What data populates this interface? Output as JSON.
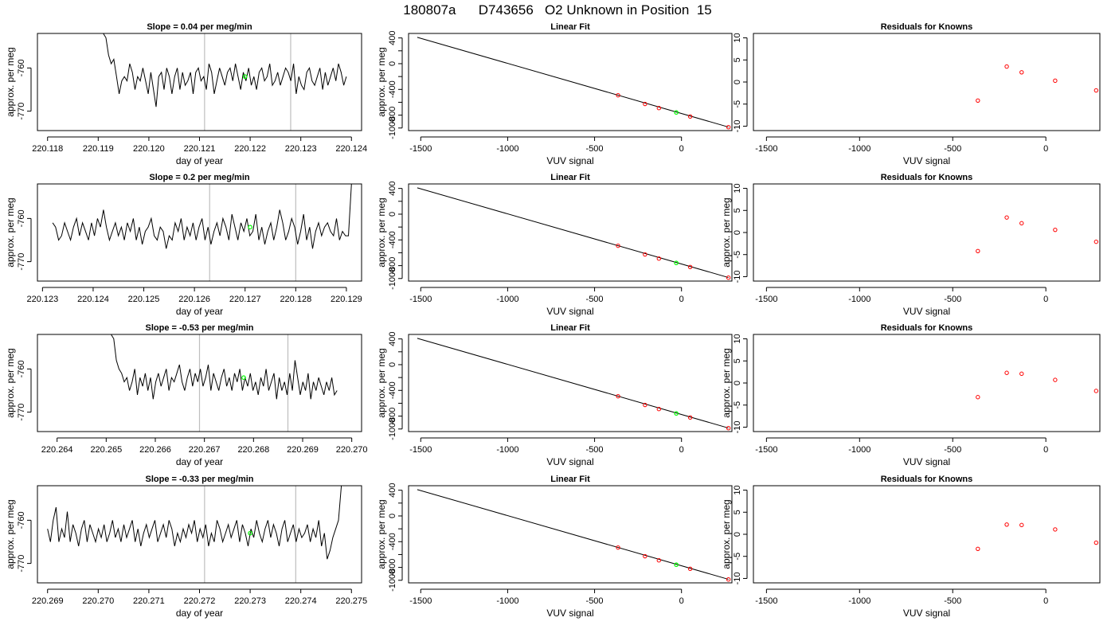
{
  "title": "180807a      D743656   O2 Unknown in Position  15",
  "colors": {
    "line": "#000000",
    "grid": "#bebebe",
    "known_point": "#ff0000",
    "unknown_point": "#00ff00"
  },
  "chart_data": [
    {
      "panel": "row1-timeseries",
      "type": "line",
      "title": "Slope =  0.04  per meg/min",
      "xlabel": "day of year",
      "ylabel": "approx. per meg",
      "xlim": [
        220.1178,
        220.1242
      ],
      "ylim": [
        -774.5,
        -752
      ],
      "xticks": [
        220.118,
        220.119,
        220.12,
        220.121,
        220.122,
        220.123,
        220.124
      ],
      "xtick_labels": [
        "220.118",
        "220.119",
        "220.120",
        "220.121",
        "220.122",
        "220.123",
        "220.124"
      ],
      "yticks": [
        -760,
        -770
      ],
      "ytick_labels": [
        "-760",
        "-770"
      ],
      "vlines": [
        220.1211,
        220.1228
      ],
      "x_start": 220.1191,
      "x_end": 220.1239,
      "y": [
        -752,
        -753,
        -757,
        -759,
        -758,
        -762,
        -766,
        -763,
        -762,
        -763,
        -759,
        -761,
        -765,
        -762,
        -763,
        -760,
        -763,
        -766,
        -761,
        -765,
        -769,
        -762,
        -761,
        -765,
        -760,
        -762,
        -766,
        -762,
        -760,
        -765,
        -761,
        -764,
        -763,
        -761,
        -766,
        -761,
        -760,
        -763,
        -762,
        -765,
        -759,
        -761,
        -766,
        -763,
        -760,
        -762,
        -764,
        -761,
        -760,
        -763,
        -759,
        -762,
        -765,
        -761,
        -763,
        -760,
        -764,
        -762,
        -765,
        -761,
        -760,
        -763,
        -762,
        -759,
        -764,
        -763,
        -761,
        -764,
        -762,
        -760,
        -761,
        -763,
        -759,
        -766,
        -762,
        -764,
        -765,
        -761,
        -760,
        -763,
        -764,
        -762,
        -760,
        -765,
        -761,
        -764,
        -762,
        -760,
        -763,
        -759,
        -761,
        -764,
        -762
      ],
      "marker": {
        "x": 220.1219,
        "y": -762
      }
    },
    {
      "panel": "row1-fit",
      "type": "scatter",
      "title": "Linear Fit",
      "xlabel": "VUV signal",
      "ylabel": "approx. per meg",
      "xlim": [
        -1570,
        290
      ],
      "ylim": [
        -1040,
        470
      ],
      "xticks": [
        -1500,
        -1000,
        -500,
        0
      ],
      "xtick_labels": [
        "-1500",
        "-1000",
        "-500",
        "0"
      ],
      "yticks": [
        400,
        200,
        0,
        -200,
        -400,
        -600,
        -800,
        -1000
      ],
      "ytick_labels": [
        "400",
        "",
        "0",
        "",
        "-400",
        "",
        "-800",
        "-1000"
      ],
      "line": [
        [
          -1520,
          410
        ],
        [
          270,
          -985
        ]
      ],
      "known": [
        [
          -365,
          -491
        ],
        [
          -210,
          -626
        ],
        [
          -130,
          -690
        ],
        [
          50,
          -821
        ],
        [
          270,
          -987
        ]
      ],
      "unknown": [
        [
          -30,
          -758
        ]
      ]
    },
    {
      "panel": "row1-residuals",
      "type": "scatter",
      "title": "Residuals for Knowns",
      "xlabel": "VUV signal",
      "ylabel": "",
      "xlim": [
        -1570,
        290
      ],
      "ylim": [
        -11,
        11
      ],
      "xticks": [
        -1500,
        -1000,
        -500,
        0
      ],
      "xtick_labels": [
        "-1500",
        "-1000",
        "-500",
        "0"
      ],
      "yticks": [
        10,
        5,
        0,
        -5,
        -10
      ],
      "ytick_labels": [
        "10",
        "5",
        "0",
        "-5",
        "-10"
      ],
      "known": [
        [
          -365,
          -4.2
        ],
        [
          -210,
          3.5
        ],
        [
          -130,
          2.2
        ],
        [
          50,
          0.3
        ],
        [
          270,
          -1.9
        ]
      ]
    },
    {
      "panel": "row2-timeseries",
      "type": "line",
      "title": "Slope =  0.2  per meg/min",
      "xlabel": "day of year",
      "ylabel": "approx. per meg",
      "xlim": [
        220.1229,
        220.1293
      ],
      "ylim": [
        -774.5,
        -752
      ],
      "xticks": [
        220.123,
        220.124,
        220.125,
        220.126,
        220.127,
        220.128,
        220.129
      ],
      "xtick_labels": [
        "220.123",
        "220.124",
        "220.125",
        "220.126",
        "220.127",
        "220.128",
        "220.129"
      ],
      "yticks": [
        -760,
        -770
      ],
      "ytick_labels": [
        "-760",
        "-770"
      ],
      "vlines": [
        220.1263,
        220.128
      ],
      "x_start": 220.1232,
      "x_end": 220.1291,
      "y": [
        -761,
        -762,
        -765,
        -764,
        -761,
        -763,
        -765,
        -762,
        -760,
        -764,
        -761,
        -763,
        -765,
        -761,
        -764,
        -760,
        -762,
        -758,
        -762,
        -765,
        -763,
        -761,
        -764,
        -762,
        -765,
        -761,
        -763,
        -760,
        -765,
        -762,
        -766,
        -763,
        -762,
        -760,
        -764,
        -765,
        -762,
        -763,
        -767,
        -764,
        -765,
        -761,
        -763,
        -760,
        -765,
        -762,
        -764,
        -761,
        -765,
        -762,
        -760,
        -765,
        -762,
        -766,
        -763,
        -761,
        -764,
        -760,
        -762,
        -765,
        -759,
        -762,
        -765,
        -761,
        -763,
        -760,
        -764,
        -763,
        -759,
        -765,
        -762,
        -766,
        -763,
        -761,
        -765,
        -762,
        -758,
        -761,
        -765,
        -763,
        -760,
        -762,
        -766,
        -763,
        -759,
        -765,
        -762,
        -767,
        -763,
        -761,
        -764,
        -762,
        -761,
        -763,
        -764,
        -760,
        -765,
        -763,
        -764,
        -764,
        -752
      ],
      "marker": {
        "x": 220.1271,
        "y": -762
      }
    },
    {
      "panel": "row2-fit",
      "type": "scatter",
      "title": "Linear Fit",
      "xlabel": "VUV signal",
      "ylabel": "approx. per meg",
      "xlim": [
        -1570,
        290
      ],
      "ylim": [
        -1040,
        470
      ],
      "xticks": [
        -1500,
        -1000,
        -500,
        0
      ],
      "xtick_labels": [
        "-1500",
        "-1000",
        "-500",
        "0"
      ],
      "yticks": [
        400,
        200,
        0,
        -200,
        -400,
        -600,
        -800,
        -1000
      ],
      "ytick_labels": [
        "400",
        "",
        "0",
        "",
        "-400",
        "",
        "-800",
        "-1000"
      ],
      "line": [
        [
          -1520,
          410
        ],
        [
          270,
          -985
        ]
      ],
      "known": [
        [
          -365,
          -491
        ],
        [
          -210,
          -626
        ],
        [
          -130,
          -690
        ],
        [
          50,
          -821
        ],
        [
          270,
          -987
        ]
      ],
      "unknown": [
        [
          -30,
          -758
        ]
      ]
    },
    {
      "panel": "row2-residuals",
      "type": "scatter",
      "title": "Residuals for Knowns",
      "xlabel": "VUV signal",
      "ylabel": "approx. per meg",
      "xlim": [
        -1570,
        290
      ],
      "ylim": [
        -11,
        11
      ],
      "xticks": [
        -1500,
        -1000,
        -500,
        0
      ],
      "xtick_labels": [
        "-1500",
        "-1000",
        "-500",
        "0"
      ],
      "yticks": [
        10,
        5,
        0,
        -5,
        -10
      ],
      "ytick_labels": [
        "10",
        "5",
        "0",
        "-5",
        "-10"
      ],
      "known": [
        [
          -365,
          -4.2
        ],
        [
          -210,
          3.4
        ],
        [
          -130,
          2.1
        ],
        [
          50,
          0.6
        ],
        [
          270,
          -2.1
        ]
      ]
    },
    {
      "panel": "row3-timeseries",
      "type": "line",
      "title": "Slope =  -0.53  per meg/min",
      "xlabel": "day of year",
      "ylabel": "approx. per meg",
      "xlim": [
        220.2636,
        220.2702
      ],
      "ylim": [
        -774.5,
        -752
      ],
      "xticks": [
        220.264,
        220.265,
        220.266,
        220.267,
        220.268,
        220.269,
        220.27
      ],
      "xtick_labels": [
        "220.264",
        "220.265",
        "220.266",
        "220.267",
        "220.268",
        "220.269",
        "220.270"
      ],
      "yticks": [
        -760,
        -770
      ],
      "ytick_labels": [
        "-760",
        "-770"
      ],
      "vlines": [
        220.2669,
        220.2687
      ],
      "x_start": 220.2651,
      "x_end": 220.2697,
      "y": [
        -752,
        -753,
        -758,
        -760,
        -761,
        -763,
        -762,
        -765,
        -763,
        -760,
        -766,
        -762,
        -764,
        -761,
        -765,
        -762,
        -767,
        -763,
        -761,
        -764,
        -762,
        -760,
        -765,
        -762,
        -763,
        -761,
        -759,
        -763,
        -765,
        -762,
        -760,
        -764,
        -761,
        -763,
        -760,
        -764,
        -762,
        -759,
        -765,
        -761,
        -763,
        -765,
        -762,
        -760,
        -764,
        -762,
        -765,
        -761,
        -763,
        -760,
        -765,
        -762,
        -764,
        -761,
        -765,
        -763,
        -766,
        -762,
        -764,
        -760,
        -765,
        -763,
        -761,
        -767,
        -762,
        -765,
        -763,
        -766,
        -761,
        -765,
        -758,
        -762,
        -766,
        -763,
        -765,
        -761,
        -767,
        -763,
        -765,
        -762,
        -764,
        -766,
        -763,
        -765,
        -762,
        -766,
        -765
      ],
      "marker": {
        "x": 220.2678,
        "y": -762
      }
    },
    {
      "panel": "row3-fit",
      "type": "scatter",
      "title": "Linear Fit",
      "xlabel": "VUV signal",
      "ylabel": "approx. per meg",
      "xlim": [
        -1570,
        290
      ],
      "ylim": [
        -1040,
        470
      ],
      "xticks": [
        -1500,
        -1000,
        -500,
        0
      ],
      "xtick_labels": [
        "-1500",
        "-1000",
        "-500",
        "0"
      ],
      "yticks": [
        400,
        200,
        0,
        -200,
        -400,
        -600,
        -800,
        -1000
      ],
      "ytick_labels": [
        "400",
        "",
        "0",
        "",
        "-400",
        "",
        "-800",
        "-1000"
      ],
      "line": [
        [
          -1520,
          410
        ],
        [
          270,
          -985
        ]
      ],
      "known": [
        [
          -365,
          -491
        ],
        [
          -210,
          -626
        ],
        [
          -130,
          -690
        ],
        [
          50,
          -821
        ],
        [
          270,
          -987
        ]
      ],
      "unknown": [
        [
          -30,
          -758
        ]
      ]
    },
    {
      "panel": "row3-residuals",
      "type": "scatter",
      "title": "Residuals for Knowns",
      "xlabel": "VUV signal",
      "ylabel": "approx. per meg",
      "xlim": [
        -1570,
        290
      ],
      "ylim": [
        -11,
        11
      ],
      "xticks": [
        -1500,
        -1000,
        -500,
        0
      ],
      "xtick_labels": [
        "-1500",
        "-1000",
        "-500",
        "0"
      ],
      "yticks": [
        10,
        5,
        0,
        -5,
        -10
      ],
      "ytick_labels": [
        "10",
        "5",
        "0",
        "-5",
        "-10"
      ],
      "known": [
        [
          -365,
          -3.2
        ],
        [
          -210,
          2.3
        ],
        [
          -130,
          2.1
        ],
        [
          50,
          0.7
        ],
        [
          270,
          -1.8
        ]
      ]
    },
    {
      "panel": "row4-timeseries",
      "type": "line",
      "title": "Slope =  -0.33  per meg/min",
      "xlabel": "day of year",
      "ylabel": "approx. per meg",
      "xlim": [
        220.2688,
        220.2752
      ],
      "ylim": [
        -774.5,
        -752
      ],
      "xticks": [
        220.269,
        220.27,
        220.271,
        220.272,
        220.273,
        220.274,
        220.275
      ],
      "xtick_labels": [
        "220.269",
        "220.270",
        "220.271",
        "220.272",
        "220.273",
        "220.274",
        "220.275"
      ],
      "yticks": [
        -760,
        -770
      ],
      "ytick_labels": [
        "-760",
        "-770"
      ],
      "vlines": [
        220.2721,
        220.2739
      ],
      "x_start": 220.269,
      "x_end": 220.2748,
      "y": [
        -762,
        -765,
        -760,
        -757,
        -765,
        -762,
        -764,
        -758,
        -765,
        -761,
        -763,
        -766,
        -762,
        -760,
        -765,
        -761,
        -763,
        -765,
        -762,
        -764,
        -761,
        -765,
        -763,
        -760,
        -764,
        -762,
        -765,
        -761,
        -764,
        -762,
        -760,
        -765,
        -762,
        -766,
        -763,
        -761,
        -764,
        -762,
        -760,
        -765,
        -763,
        -761,
        -764,
        -760,
        -762,
        -766,
        -763,
        -765,
        -762,
        -764,
        -761,
        -763,
        -760,
        -765,
        -762,
        -764,
        -761,
        -766,
        -763,
        -765,
        -760,
        -762,
        -765,
        -763,
        -761,
        -764,
        -762,
        -760,
        -765,
        -761,
        -763,
        -766,
        -762,
        -764,
        -760,
        -763,
        -765,
        -762,
        -760,
        -764,
        -761,
        -763,
        -766,
        -762,
        -760,
        -765,
        -763,
        -761,
        -765,
        -762,
        -764,
        -763,
        -761,
        -765,
        -762,
        -764,
        -760,
        -766,
        -763,
        -769,
        -767,
        -764,
        -762,
        -760,
        -752
      ],
      "marker": {
        "x": 220.273,
        "y": -763
      }
    },
    {
      "panel": "row4-fit",
      "type": "scatter",
      "title": "Linear Fit",
      "xlabel": "VUV signal",
      "ylabel": "approx. per meg",
      "xlim": [
        -1570,
        290
      ],
      "ylim": [
        -1040,
        470
      ],
      "xticks": [
        -1500,
        -1000,
        -500,
        0
      ],
      "xtick_labels": [
        "-1500",
        "-1000",
        "-500",
        "0"
      ],
      "yticks": [
        400,
        200,
        0,
        -200,
        -400,
        -600,
        -800,
        -1000
      ],
      "ytick_labels": [
        "400",
        "",
        "0",
        "",
        "-400",
        "",
        "-800",
        "-1000"
      ],
      "line": [
        [
          -1520,
          410
        ],
        [
          270,
          -985
        ]
      ],
      "known": [
        [
          -365,
          -491
        ],
        [
          -210,
          -626
        ],
        [
          -130,
          -690
        ],
        [
          50,
          -821
        ],
        [
          270,
          -987
        ]
      ],
      "unknown": [
        [
          -30,
          -758
        ]
      ]
    },
    {
      "panel": "row4-residuals",
      "type": "scatter",
      "title": "Residuals for Knowns",
      "xlabel": "VUV signal",
      "ylabel": "approx. per meg",
      "xlim": [
        -1570,
        290
      ],
      "ylim": [
        -11,
        11
      ],
      "xticks": [
        -1500,
        -1000,
        -500,
        0
      ],
      "xtick_labels": [
        "-1500",
        "-1000",
        "-500",
        "0"
      ],
      "yticks": [
        10,
        5,
        0,
        -5,
        -10
      ],
      "ytick_labels": [
        "10",
        "5",
        "0",
        "-5",
        "-10"
      ],
      "known": [
        [
          -365,
          -3.3
        ],
        [
          -210,
          2.2
        ],
        [
          -130,
          2.1
        ],
        [
          50,
          1.1
        ],
        [
          270,
          -1.9
        ]
      ]
    }
  ]
}
